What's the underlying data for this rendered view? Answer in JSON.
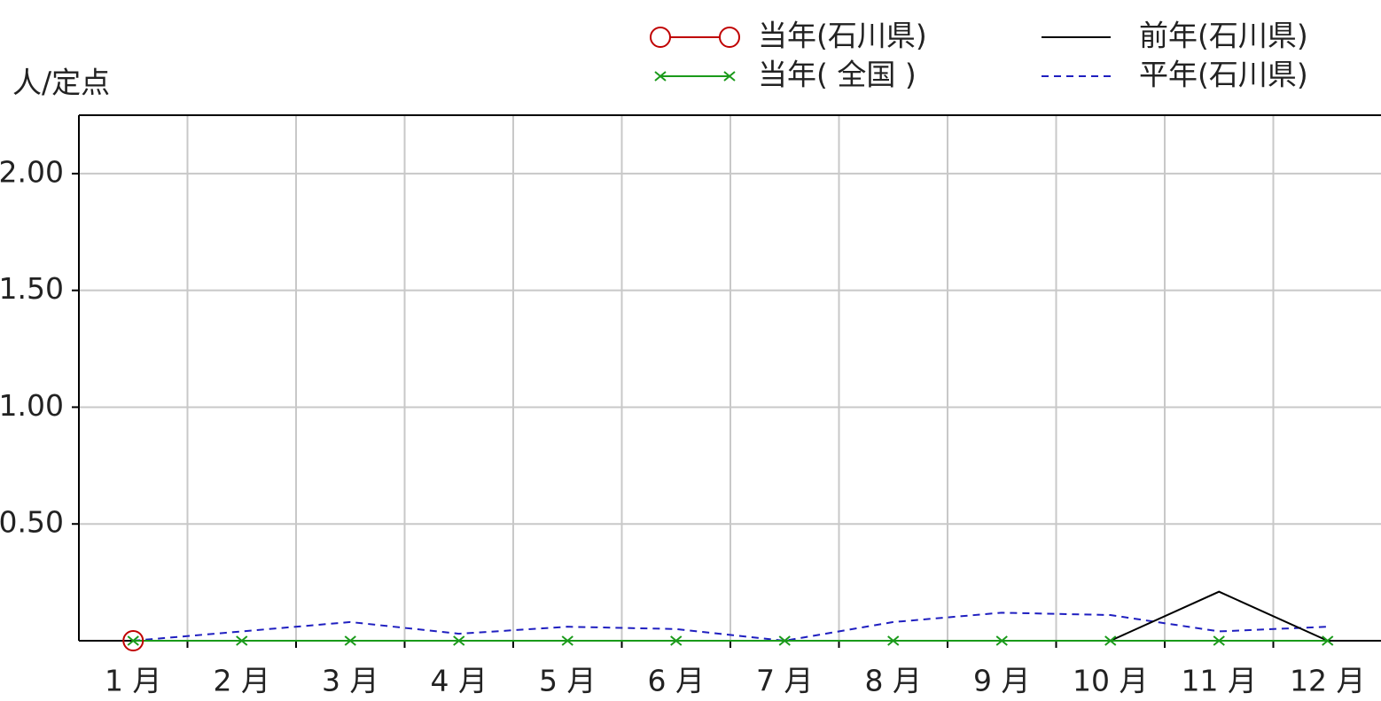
{
  "chart_data": {
    "type": "line",
    "y_label": "人/定点",
    "categories": [
      "1 月",
      "2 月",
      "3 月",
      "4 月",
      "5 月",
      "6 月",
      "7 月",
      "8 月",
      "9 月",
      "10 月",
      "11 月",
      "12 月"
    ],
    "series": [
      {
        "name": "当年(石川県)",
        "color": "#c00000",
        "marker": "circle",
        "dash": false,
        "values": [
          0,
          null,
          null,
          null,
          null,
          null,
          null,
          null,
          null,
          null,
          null,
          null
        ]
      },
      {
        "name": "当年( 全国 )",
        "color": "#1a9a1a",
        "marker": "x",
        "dash": false,
        "values": [
          0,
          0,
          0,
          0,
          0,
          0,
          0,
          0,
          0,
          0,
          0,
          0
        ]
      },
      {
        "name": "前年(石川県)",
        "color": "#000000",
        "marker": "none",
        "dash": false,
        "values": [
          null,
          null,
          null,
          null,
          null,
          null,
          null,
          null,
          null,
          0,
          0.21,
          0
        ]
      },
      {
        "name": "平年(石川県)",
        "color": "#1f1fc0",
        "marker": "none",
        "dash": true,
        "values": [
          0,
          0.04,
          0.08,
          0.03,
          0.06,
          0.05,
          0,
          0.08,
          0.12,
          0.11,
          0.04,
          0.06
        ]
      }
    ],
    "ylim": [
      0,
      2.25
    ],
    "yticks": [
      {
        "value": 0.5,
        "label": "0.50"
      },
      {
        "value": 1,
        "label": "1.00"
      },
      {
        "value": 1.5,
        "label": "1.50"
      },
      {
        "value": 2,
        "label": "2.00"
      }
    ],
    "grid": true
  }
}
